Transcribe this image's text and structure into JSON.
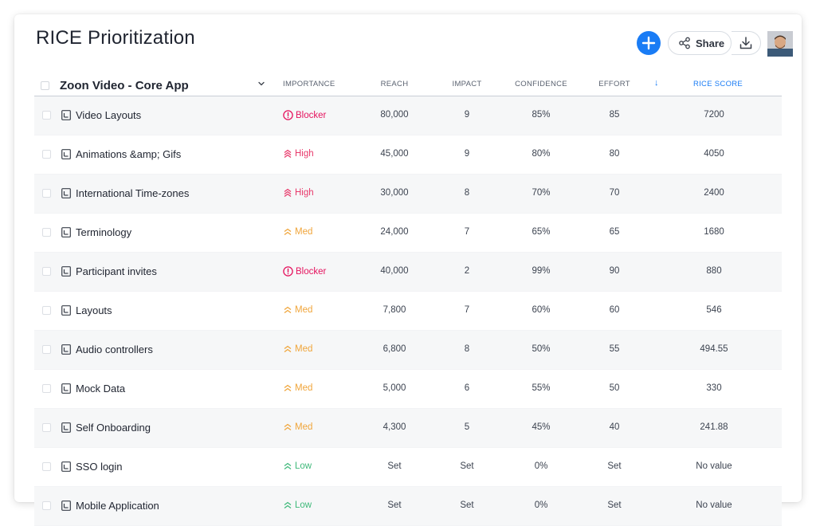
{
  "page": {
    "title": "RICE Prioritization",
    "share_label": "Share"
  },
  "colors": {
    "accent": "#1a7cf5",
    "blocker": "#e5135e",
    "high": "#e8396b",
    "med": "#f0a53a",
    "low": "#3fb97a"
  },
  "table": {
    "group_title": "Zoon Video - Core App",
    "headers": {
      "importance": "IMPORTANCE",
      "reach": "REACH",
      "impact": "IMPACT",
      "confidence": "CONFIDENCE",
      "effort": "EFFORT",
      "sort_arrow": "↓",
      "rice": "RICE SCORE"
    },
    "rows": [
      {
        "name": "Video Layouts",
        "importance": "Blocker",
        "level": "blocker",
        "reach": "80,000",
        "impact": "9",
        "confidence": "85%",
        "effort": "85",
        "rice": "7200"
      },
      {
        "name": "Animations &amp; Gifs",
        "importance": "High",
        "level": "high",
        "reach": "45,000",
        "impact": "9",
        "confidence": "80%",
        "effort": "80",
        "rice": "4050"
      },
      {
        "name": "International Time-zones",
        "importance": "High",
        "level": "high",
        "reach": "30,000",
        "impact": "8",
        "confidence": "70%",
        "effort": "70",
        "rice": "2400"
      },
      {
        "name": "Terminology",
        "importance": "Med",
        "level": "med",
        "reach": "24,000",
        "impact": "7",
        "confidence": "65%",
        "effort": "65",
        "rice": "1680"
      },
      {
        "name": "Participant invites",
        "importance": "Blocker",
        "level": "blocker",
        "reach": "40,000",
        "impact": "2",
        "confidence": "99%",
        "effort": "90",
        "rice": "880"
      },
      {
        "name": "Layouts",
        "importance": "Med",
        "level": "med",
        "reach": "7,800",
        "impact": "7",
        "confidence": "60%",
        "effort": "60",
        "rice": "546"
      },
      {
        "name": "Audio controllers",
        "importance": "Med",
        "level": "med",
        "reach": "6,800",
        "impact": "8",
        "confidence": "50%",
        "effort": "55",
        "rice": "494.55"
      },
      {
        "name": "Mock Data",
        "importance": "Med",
        "level": "med",
        "reach": "5,000",
        "impact": "6",
        "confidence": "55%",
        "effort": "50",
        "rice": "330"
      },
      {
        "name": "Self Onboarding",
        "importance": "Med",
        "level": "med",
        "reach": "4,300",
        "impact": "5",
        "confidence": "45%",
        "effort": "40",
        "rice": "241.88"
      },
      {
        "name": "SSO login",
        "importance": "Low",
        "level": "low",
        "reach": "Set",
        "impact": "Set",
        "confidence": "0%",
        "effort": "Set",
        "rice": "No value"
      },
      {
        "name": "Mobile Application",
        "importance": "Low",
        "level": "low",
        "reach": "Set",
        "impact": "Set",
        "confidence": "0%",
        "effort": "Set",
        "rice": "No value"
      }
    ]
  }
}
